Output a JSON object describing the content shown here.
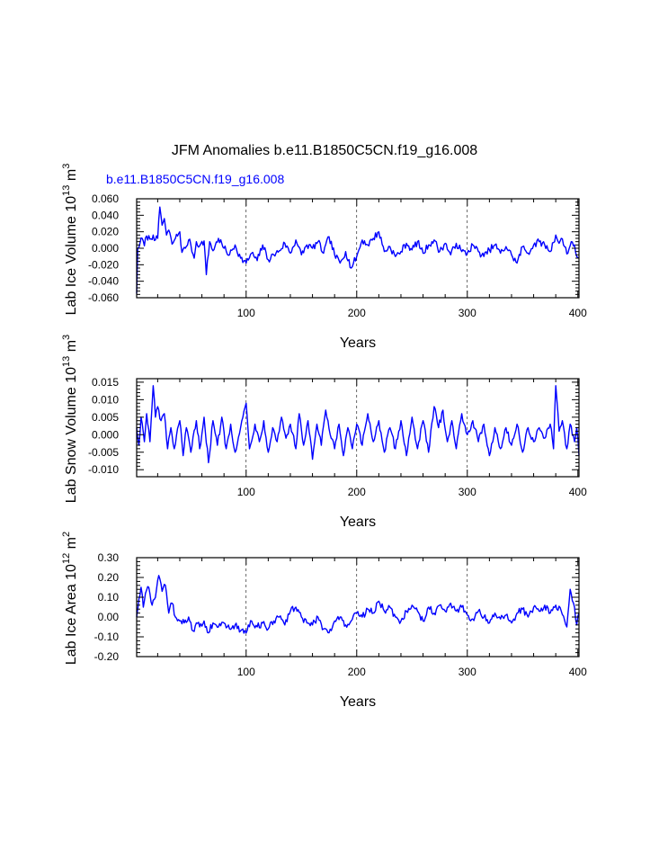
{
  "title": "JFM Anomalies b.e11.B1850C5CN.f19_g16.008",
  "subtitle": "b.e11.B1850C5CN.f19_g16.008",
  "colors": {
    "series": "#0000ff",
    "axes": "#000000",
    "subtitle": "#0000ff"
  },
  "chart_data": [
    {
      "type": "line",
      "ylabel": "Lab Ice Volume 10",
      "ylabel_exp": "13",
      "ylabel_unit": "m",
      "ylabel_unit_exp": "3",
      "xlabel": "Years",
      "xlim": [
        1,
        401
      ],
      "ylim": [
        -0.06,
        0.06
      ],
      "xticks": [
        100,
        200,
        300,
        400
      ],
      "xtick_labels": [
        "100",
        "200",
        "300",
        "400"
      ],
      "yticks": [
        -0.06,
        -0.04,
        -0.02,
        0.0,
        0.02,
        0.04,
        0.06
      ],
      "ytick_labels": [
        "-0.060",
        "-0.040",
        "-0.020",
        "0.000",
        "0.020",
        "0.040",
        "0.060"
      ],
      "grid_x": [
        100,
        200,
        300
      ],
      "anchors": [
        [
          1,
          -0.055
        ],
        [
          2,
          0.0
        ],
        [
          4,
          0.006
        ],
        [
          6,
          0.012
        ],
        [
          8,
          0.003
        ],
        [
          10,
          0.015
        ],
        [
          13,
          0.011
        ],
        [
          16,
          0.016
        ],
        [
          18,
          0.01
        ],
        [
          20,
          0.012
        ],
        [
          22,
          0.05
        ],
        [
          24,
          0.028
        ],
        [
          26,
          0.036
        ],
        [
          28,
          0.016
        ],
        [
          30,
          0.022
        ],
        [
          33,
          0.005
        ],
        [
          36,
          0.012
        ],
        [
          40,
          0.02
        ],
        [
          42,
          -0.005
        ],
        [
          45,
          0.0
        ],
        [
          48,
          0.01
        ],
        [
          50,
          0.004
        ],
        [
          53,
          -0.012
        ],
        [
          55,
          0.008
        ],
        [
          58,
          0.003
        ],
        [
          62,
          0.009
        ],
        [
          64,
          -0.032
        ],
        [
          67,
          0.008
        ],
        [
          70,
          -0.003
        ],
        [
          75,
          0.012
        ],
        [
          80,
          0.0
        ],
        [
          85,
          -0.008
        ],
        [
          90,
          0.004
        ],
        [
          95,
          -0.012
        ],
        [
          100,
          -0.018
        ],
        [
          105,
          -0.006
        ],
        [
          110,
          -0.015
        ],
        [
          115,
          0.004
        ],
        [
          120,
          -0.014
        ],
        [
          125,
          -0.008
        ],
        [
          130,
          -0.003
        ],
        [
          135,
          0.006
        ],
        [
          140,
          -0.006
        ],
        [
          145,
          0.01
        ],
        [
          150,
          -0.008
        ],
        [
          155,
          0.004
        ],
        [
          160,
          0.0
        ],
        [
          165,
          0.008
        ],
        [
          170,
          -0.006
        ],
        [
          175,
          0.014
        ],
        [
          180,
          -0.008
        ],
        [
          185,
          -0.018
        ],
        [
          190,
          -0.004
        ],
        [
          195,
          -0.024
        ],
        [
          200,
          -0.01
        ],
        [
          205,
          0.01
        ],
        [
          210,
          0.004
        ],
        [
          215,
          0.012
        ],
        [
          220,
          0.02
        ],
        [
          225,
          -0.004
        ],
        [
          230,
          0.002
        ],
        [
          235,
          -0.01
        ],
        [
          240,
          -0.004
        ],
        [
          245,
          0.006
        ],
        [
          250,
          -0.002
        ],
        [
          255,
          0.008
        ],
        [
          260,
          -0.006
        ],
        [
          265,
          0.004
        ],
        [
          270,
          0.01
        ],
        [
          275,
          -0.004
        ],
        [
          280,
          0.006
        ],
        [
          285,
          -0.008
        ],
        [
          290,
          0.006
        ],
        [
          295,
          -0.004
        ],
        [
          300,
          -0.006
        ],
        [
          305,
          0.004
        ],
        [
          310,
          -0.004
        ],
        [
          315,
          -0.01
        ],
        [
          320,
          -0.002
        ],
        [
          325,
          0.004
        ],
        [
          330,
          -0.006
        ],
        [
          335,
          0.002
        ],
        [
          340,
          -0.008
        ],
        [
          345,
          -0.018
        ],
        [
          350,
          0.002
        ],
        [
          355,
          -0.006
        ],
        [
          360,
          0.004
        ],
        [
          365,
          0.008
        ],
        [
          370,
          0.004
        ],
        [
          375,
          -0.004
        ],
        [
          380,
          0.016
        ],
        [
          383,
          0.006
        ],
        [
          385,
          0.012
        ],
        [
          388,
          0.002
        ],
        [
          391,
          -0.006
        ],
        [
          394,
          0.008
        ],
        [
          397,
          0.004
        ],
        [
          399,
          -0.01
        ],
        [
          401,
          -0.012
        ]
      ]
    },
    {
      "type": "line",
      "ylabel": "Lab Snow Volume 10",
      "ylabel_exp": "13",
      "ylabel_unit": "m",
      "ylabel_unit_exp": "3",
      "xlabel": "Years",
      "xlim": [
        1,
        401
      ],
      "ylim": [
        -0.012,
        0.016
      ],
      "xticks": [
        100,
        200,
        300,
        400
      ],
      "xtick_labels": [
        "100",
        "200",
        "300",
        "400"
      ],
      "yticks": [
        -0.01,
        -0.005,
        0.0,
        0.005,
        0.01,
        0.015
      ],
      "ytick_labels": [
        "-0.010",
        "-0.005",
        "0.000",
        "0.005",
        "0.010",
        "0.015"
      ],
      "grid_x": [
        100,
        200,
        300
      ],
      "anchors": [
        [
          1,
          0.002
        ],
        [
          3,
          -0.003
        ],
        [
          5,
          0.005
        ],
        [
          8,
          -0.002
        ],
        [
          10,
          0.006
        ],
        [
          13,
          -0.002
        ],
        [
          16,
          0.014
        ],
        [
          18,
          0.005
        ],
        [
          20,
          0.008
        ],
        [
          23,
          0.004
        ],
        [
          26,
          0.006
        ],
        [
          29,
          -0.004
        ],
        [
          32,
          0.002
        ],
        [
          35,
          -0.004
        ],
        [
          40,
          0.004
        ],
        [
          43,
          -0.006
        ],
        [
          46,
          0.002
        ],
        [
          50,
          -0.005
        ],
        [
          55,
          0.004
        ],
        [
          58,
          -0.004
        ],
        [
          62,
          0.005
        ],
        [
          66,
          -0.008
        ],
        [
          70,
          0.004
        ],
        [
          74,
          -0.003
        ],
        [
          78,
          0.005
        ],
        [
          82,
          -0.004
        ],
        [
          86,
          0.003
        ],
        [
          90,
          -0.005
        ],
        [
          95,
          0.002
        ],
        [
          100,
          0.009
        ],
        [
          103,
          -0.004
        ],
        [
          108,
          0.003
        ],
        [
          112,
          -0.002
        ],
        [
          116,
          0.004
        ],
        [
          120,
          -0.005
        ],
        [
          124,
          0.002
        ],
        [
          128,
          -0.002
        ],
        [
          132,
          0.005
        ],
        [
          136,
          -0.001
        ],
        [
          140,
          0.003
        ],
        [
          145,
          -0.004
        ],
        [
          148,
          0.006
        ],
        [
          152,
          -0.003
        ],
        [
          156,
          0.004
        ],
        [
          160,
          -0.007
        ],
        [
          164,
          0.003
        ],
        [
          168,
          -0.003
        ],
        [
          172,
          0.007
        ],
        [
          176,
          0.0
        ],
        [
          180,
          -0.004
        ],
        [
          184,
          0.003
        ],
        [
          188,
          -0.006
        ],
        [
          192,
          0.002
        ],
        [
          196,
          -0.004
        ],
        [
          200,
          0.003
        ],
        [
          205,
          -0.003
        ],
        [
          210,
          0.006
        ],
        [
          215,
          -0.002
        ],
        [
          220,
          0.004
        ],
        [
          225,
          -0.005
        ],
        [
          230,
          0.002
        ],
        [
          235,
          -0.004
        ],
        [
          240,
          0.004
        ],
        [
          245,
          -0.006
        ],
        [
          250,
          0.005
        ],
        [
          255,
          -0.004
        ],
        [
          260,
          0.004
        ],
        [
          265,
          -0.005
        ],
        [
          270,
          0.008
        ],
        [
          274,
          0.002
        ],
        [
          278,
          0.007
        ],
        [
          282,
          -0.002
        ],
        [
          286,
          0.004
        ],
        [
          290,
          -0.004
        ],
        [
          295,
          0.006
        ],
        [
          300,
          0.0
        ],
        [
          305,
          0.004
        ],
        [
          310,
          -0.002
        ],
        [
          315,
          0.003
        ],
        [
          320,
          -0.006
        ],
        [
          325,
          0.002
        ],
        [
          330,
          -0.004
        ],
        [
          335,
          0.002
        ],
        [
          340,
          -0.003
        ],
        [
          345,
          0.003
        ],
        [
          350,
          -0.005
        ],
        [
          355,
          0.002
        ],
        [
          360,
          -0.002
        ],
        [
          365,
          0.002
        ],
        [
          370,
          -0.001
        ],
        [
          375,
          0.003
        ],
        [
          378,
          -0.004
        ],
        [
          380,
          0.014
        ],
        [
          383,
          0.001
        ],
        [
          386,
          0.004
        ],
        [
          390,
          -0.004
        ],
        [
          393,
          0.003
        ],
        [
          397,
          -0.002
        ],
        [
          399,
          0.002
        ],
        [
          401,
          -0.006
        ]
      ]
    },
    {
      "type": "line",
      "ylabel": "Lab Ice Area 10",
      "ylabel_exp": "12",
      "ylabel_unit": "m",
      "ylabel_unit_exp": "2",
      "xlabel": "Years",
      "xlim": [
        1,
        401
      ],
      "ylim": [
        -0.2,
        0.3
      ],
      "xticks": [
        100,
        200,
        300,
        400
      ],
      "xtick_labels": [
        "100",
        "200",
        "300",
        "400"
      ],
      "yticks": [
        -0.2,
        -0.1,
        0.0,
        0.1,
        0.2,
        0.3
      ],
      "ytick_labels": [
        "-0.20",
        "-0.10",
        "0.00",
        "0.10",
        "0.20",
        "0.30"
      ],
      "grid_x": [
        100,
        200,
        300
      ],
      "anchors": [
        [
          1,
          0.0
        ],
        [
          3,
          0.09
        ],
        [
          5,
          0.15
        ],
        [
          7,
          0.05
        ],
        [
          9,
          0.12
        ],
        [
          12,
          0.15
        ],
        [
          15,
          0.06
        ],
        [
          18,
          0.1
        ],
        [
          21,
          0.21
        ],
        [
          24,
          0.13
        ],
        [
          27,
          0.16
        ],
        [
          30,
          0.02
        ],
        [
          33,
          0.07
        ],
        [
          36,
          0.0
        ],
        [
          40,
          -0.02
        ],
        [
          44,
          -0.03
        ],
        [
          48,
          0.0
        ],
        [
          52,
          -0.07
        ],
        [
          55,
          -0.03
        ],
        [
          58,
          -0.05
        ],
        [
          62,
          -0.02
        ],
        [
          66,
          -0.08
        ],
        [
          70,
          -0.03
        ],
        [
          75,
          -0.05
        ],
        [
          80,
          -0.03
        ],
        [
          85,
          -0.06
        ],
        [
          90,
          -0.04
        ],
        [
          95,
          -0.07
        ],
        [
          100,
          -0.08
        ],
        [
          105,
          -0.02
        ],
        [
          110,
          -0.05
        ],
        [
          115,
          -0.03
        ],
        [
          120,
          -0.06
        ],
        [
          125,
          -0.02
        ],
        [
          130,
          0.0
        ],
        [
          135,
          -0.04
        ],
        [
          140,
          0.03
        ],
        [
          145,
          0.05
        ],
        [
          150,
          0.0
        ],
        [
          155,
          -0.03
        ],
        [
          160,
          -0.04
        ],
        [
          165,
          0.0
        ],
        [
          170,
          -0.06
        ],
        [
          175,
          -0.08
        ],
        [
          180,
          -0.02
        ],
        [
          185,
          0.0
        ],
        [
          190,
          -0.04
        ],
        [
          195,
          -0.02
        ],
        [
          200,
          0.02
        ],
        [
          205,
          0.0
        ],
        [
          210,
          0.04
        ],
        [
          215,
          0.02
        ],
        [
          220,
          0.08
        ],
        [
          225,
          0.03
        ],
        [
          230,
          0.05
        ],
        [
          235,
          0.0
        ],
        [
          240,
          -0.02
        ],
        [
          245,
          0.03
        ],
        [
          250,
          0.06
        ],
        [
          255,
          0.03
        ],
        [
          260,
          -0.02
        ],
        [
          265,
          0.05
        ],
        [
          270,
          0.02
        ],
        [
          275,
          0.06
        ],
        [
          280,
          0.03
        ],
        [
          285,
          0.07
        ],
        [
          290,
          0.03
        ],
        [
          295,
          0.05
        ],
        [
          300,
          0.01
        ],
        [
          305,
          -0.01
        ],
        [
          310,
          0.03
        ],
        [
          315,
          0.0
        ],
        [
          320,
          -0.03
        ],
        [
          325,
          0.02
        ],
        [
          330,
          -0.01
        ],
        [
          335,
          0.01
        ],
        [
          340,
          -0.03
        ],
        [
          345,
          0.02
        ],
        [
          350,
          0.04
        ],
        [
          355,
          0.0
        ],
        [
          360,
          0.05
        ],
        [
          365,
          0.03
        ],
        [
          370,
          0.06
        ],
        [
          375,
          0.02
        ],
        [
          380,
          0.06
        ],
        [
          385,
          0.03
        ],
        [
          390,
          -0.05
        ],
        [
          393,
          0.14
        ],
        [
          396,
          0.07
        ],
        [
          399,
          -0.04
        ],
        [
          401,
          0.02
        ]
      ]
    }
  ]
}
